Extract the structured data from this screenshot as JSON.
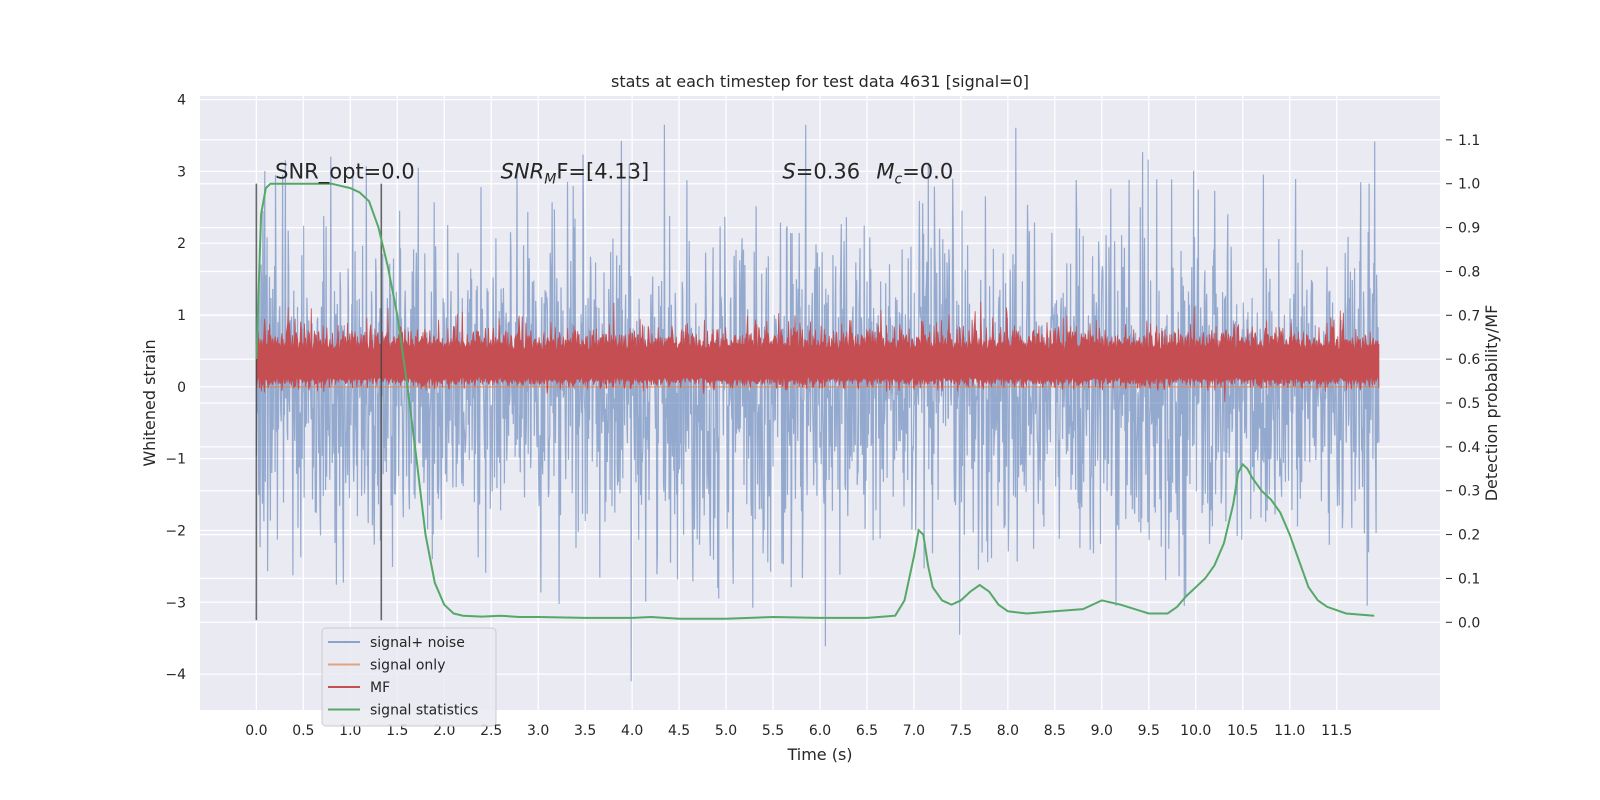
{
  "chart_data": {
    "type": "line",
    "title": "stats at each timestep for test data 4631 [signal=0]",
    "xlabel": "Time (s)",
    "ylabel": "Whitened strain",
    "ylabel_right": "Detection probability/MF",
    "xlim": [
      -0.6,
      12.6
    ],
    "ylim": [
      -4.5,
      4.05
    ],
    "ylim_right": [
      -0.2,
      1.2
    ],
    "x_ticks": [
      0.0,
      0.5,
      1.0,
      1.5,
      2.0,
      2.5,
      3.0,
      3.5,
      4.0,
      4.5,
      5.0,
      5.5,
      6.0,
      6.5,
      7.0,
      7.5,
      8.0,
      8.5,
      9.0,
      9.5,
      10.0,
      10.5,
      11.0,
      11.5
    ],
    "y_ticks": [
      -4,
      -3,
      -2,
      -1,
      0,
      1,
      2,
      3,
      4
    ],
    "y_ticks_right": [
      0.0,
      0.1,
      0.2,
      0.3,
      0.4,
      0.5,
      0.6,
      0.7,
      0.8,
      0.9,
      1.0,
      1.1
    ],
    "grid": true,
    "legend_placement": "lower-left",
    "vlines": [
      0.0,
      1.33
    ],
    "annotations": [
      {
        "text": "SNR_opt=0.0",
        "x": 0.2,
        "y": 2.9
      },
      {
        "text": "SNR",
        "sub": "M",
        "rest": "F=[4.13]",
        "x": 2.6,
        "y": 2.9
      },
      {
        "text": "S",
        "rest": "=0.36",
        "x": 5.6,
        "y": 2.9
      },
      {
        "text": "M",
        "sub": "c",
        "rest": "=0.0",
        "x": 6.6,
        "y": 2.9
      }
    ],
    "series": [
      {
        "name": "signal+ noise",
        "color": "#4c72b0",
        "axis": "left",
        "kind": "noise",
        "x_range": [
          0.0,
          11.95
        ],
        "amplitude": 1.15
      },
      {
        "name": "signal only",
        "color": "#dd8452",
        "axis": "left",
        "kind": "flat",
        "value": 0.0,
        "x_range": [
          0.0,
          11.95
        ]
      },
      {
        "name": "MF",
        "color": "#c44e52",
        "axis": "right",
        "kind": "band",
        "baseline": 0.56,
        "top": 0.62,
        "x_range": [
          0.0,
          11.95
        ]
      },
      {
        "name": "signal statistics",
        "color": "#55a868",
        "axis": "right",
        "kind": "line",
        "x": [
          0.0,
          0.05,
          0.1,
          0.15,
          0.2,
          0.3,
          0.5,
          0.8,
          1.0,
          1.1,
          1.2,
          1.3,
          1.4,
          1.5,
          1.6,
          1.7,
          1.8,
          1.9,
          2.0,
          2.1,
          2.2,
          2.4,
          2.6,
          2.8,
          3.0,
          3.5,
          4.0,
          4.2,
          4.5,
          5.0,
          5.5,
          6.0,
          6.5,
          6.8,
          6.9,
          7.0,
          7.05,
          7.1,
          7.15,
          7.2,
          7.3,
          7.4,
          7.5,
          7.6,
          7.7,
          7.8,
          7.9,
          8.0,
          8.2,
          8.5,
          8.8,
          9.0,
          9.2,
          9.5,
          9.7,
          9.8,
          9.9,
          10.0,
          10.1,
          10.2,
          10.3,
          10.4,
          10.45,
          10.5,
          10.55,
          10.6,
          10.7,
          10.8,
          10.9,
          11.0,
          11.1,
          11.2,
          11.3,
          11.4,
          11.6,
          11.9
        ],
        "values": [
          0.6,
          0.93,
          0.99,
          1.0,
          1.0,
          1.0,
          1.0,
          1.0,
          0.99,
          0.98,
          0.96,
          0.9,
          0.81,
          0.7,
          0.55,
          0.38,
          0.2,
          0.09,
          0.04,
          0.02,
          0.015,
          0.013,
          0.015,
          0.012,
          0.012,
          0.01,
          0.01,
          0.012,
          0.008,
          0.008,
          0.012,
          0.01,
          0.01,
          0.015,
          0.05,
          0.15,
          0.21,
          0.2,
          0.13,
          0.08,
          0.05,
          0.04,
          0.05,
          0.07,
          0.085,
          0.07,
          0.04,
          0.025,
          0.02,
          0.025,
          0.03,
          0.05,
          0.04,
          0.02,
          0.02,
          0.035,
          0.06,
          0.08,
          0.1,
          0.13,
          0.18,
          0.27,
          0.34,
          0.36,
          0.35,
          0.33,
          0.3,
          0.28,
          0.25,
          0.2,
          0.14,
          0.08,
          0.05,
          0.035,
          0.02,
          0.015
        ]
      }
    ]
  }
}
